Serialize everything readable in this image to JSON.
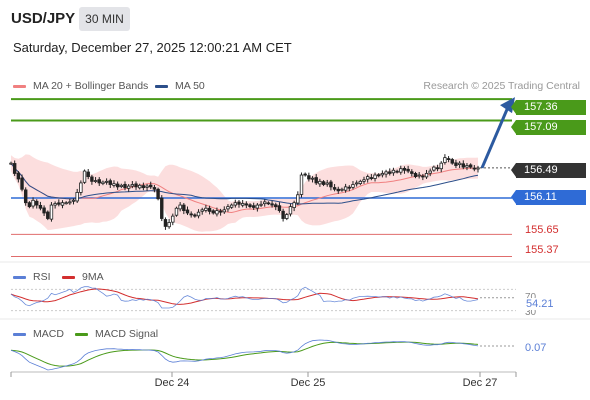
{
  "header": {
    "symbol": "USD/JPY",
    "timeframe": "30 MIN",
    "datetime": "Saturday, December 27, 2025 12:00:21 AM CET",
    "credit": "Research © 2025 Trading Central"
  },
  "legend": {
    "ma20": {
      "label": "MA 20 + Bollinger Bands",
      "color": "#f08080"
    },
    "ma50": {
      "label": "MA 50",
      "color": "#2c4f8a"
    },
    "rsi": {
      "label": "RSI",
      "color": "#5b7fd6"
    },
    "rsi_ma": {
      "label": "9MA",
      "color": "#d32f2f"
    },
    "macd": {
      "label": "MACD",
      "color": "#5b7fd6"
    },
    "macd_signal": {
      "label": "MACD Signal",
      "color": "#4a9a1a"
    }
  },
  "price_levels": {
    "resistance_2": {
      "value": "157.36",
      "color": "#4a9a1a"
    },
    "resistance_1": {
      "value": "157.09",
      "color": "#4a9a1a"
    },
    "last": {
      "value": "156.49",
      "color": "#333333"
    },
    "pivot": {
      "value": "156.11",
      "color": "#2f6bd6"
    },
    "support_1": {
      "value": "155.65",
      "color": "#d32f2f"
    },
    "support_2": {
      "value": "155.37",
      "color": "#d32f2f"
    }
  },
  "rsi_panel": {
    "value": "54.21",
    "levels": [
      "70",
      "30"
    ]
  },
  "macd_panel": {
    "value": "0.07"
  },
  "x_axis": {
    "labels": [
      "Dec 24",
      "Dec 25",
      "Dec 27"
    ]
  },
  "chart_data": [
    {
      "type": "candlestick",
      "series": [
        {
          "name": "MA 20 + Bollinger Bands"
        },
        {
          "name": "MA 50"
        }
      ],
      "price_closes": [
        156.55,
        156.42,
        156.35,
        156.22,
        156.05,
        156.0,
        156.08,
        156.02,
        155.98,
        155.92,
        155.85,
        156.02,
        156.04,
        156.03,
        156.05,
        156.05,
        156.06,
        156.08,
        156.18,
        156.3,
        156.45,
        156.38,
        156.32,
        156.33,
        156.3,
        156.31,
        156.32,
        156.28,
        156.29,
        156.25,
        156.27,
        156.24,
        156.26,
        156.28,
        156.25,
        156.27,
        156.24,
        156.26,
        156.25,
        156.22,
        156.1,
        155.85,
        155.75,
        155.8,
        155.88,
        155.98,
        156.02,
        155.95,
        155.92,
        155.9,
        155.88,
        155.93,
        155.96,
        155.98,
        155.94,
        155.92,
        155.95,
        155.93,
        155.96,
        156.0,
        156.02,
        156.05,
        156.03,
        156.04,
        156.02,
        156.0,
        155.99,
        156.02,
        156.03,
        156.06,
        156.04,
        156.02,
        156.0,
        155.95,
        155.85,
        155.9,
        156.0,
        156.05,
        156.15,
        156.4,
        156.4,
        156.35,
        156.36,
        156.3,
        156.32,
        156.28,
        156.3,
        156.25,
        156.22,
        156.2,
        156.22,
        156.25,
        156.24,
        156.28,
        156.3,
        156.32,
        156.34,
        156.38,
        156.36,
        156.4,
        156.39,
        156.42,
        156.44,
        156.42,
        156.46,
        156.44,
        156.48,
        156.46,
        156.45,
        156.42,
        156.38,
        156.4,
        156.38,
        156.42,
        156.45,
        156.5,
        156.48,
        156.55,
        156.62,
        156.6,
        156.55,
        156.52,
        156.55,
        156.5,
        156.52,
        156.5,
        156.48,
        156.49
      ],
      "levels": {
        "resistance_2": 157.36,
        "resistance_1": 157.09,
        "last": 156.49,
        "pivot": 156.11,
        "support_1": 155.65,
        "support_2": 155.37
      },
      "ylim": [
        155.3,
        157.45
      ]
    },
    {
      "type": "line",
      "series": [
        {
          "name": "RSI"
        },
        {
          "name": "9MA"
        }
      ],
      "last_value": 54.21,
      "ylim": [
        20,
        80
      ]
    },
    {
      "type": "line",
      "series": [
        {
          "name": "MACD"
        },
        {
          "name": "MACD Signal"
        }
      ],
      "last_value": 0.07
    }
  ]
}
